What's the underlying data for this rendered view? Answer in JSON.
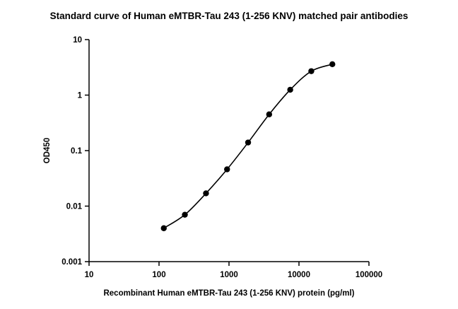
{
  "chart_data": {
    "type": "scatter",
    "title": "Standard curve of Human eMTBR-Tau 243 (1-256 KNV) matched pair antibodies",
    "xlabel": "Recombinant Human eMTBR-Tau 243 (1-256 KNV) protein (pg/ml)",
    "ylabel": "OD450",
    "x_scale": "log",
    "y_scale": "log",
    "xlim": [
      10,
      100000
    ],
    "ylim": [
      0.001,
      10
    ],
    "x_ticks": [
      10,
      100,
      1000,
      10000,
      100000
    ],
    "x_tick_labels": [
      "10",
      "100",
      "1000",
      "10000",
      "100000"
    ],
    "y_ticks": [
      0.001,
      0.01,
      0.1,
      1,
      10
    ],
    "y_tick_labels": [
      "0.001",
      "0.01",
      "0.1",
      "1",
      "10"
    ],
    "grid": false,
    "legend": "none",
    "fit_curve": true,
    "color": "#000000",
    "series": [
      {
        "x": [
          117,
          234,
          469,
          938,
          1875,
          3750,
          7500,
          15000,
          30000
        ],
        "y": [
          0.004,
          0.007,
          0.017,
          0.046,
          0.14,
          0.45,
          1.25,
          2.7,
          3.6
        ]
      }
    ]
  }
}
